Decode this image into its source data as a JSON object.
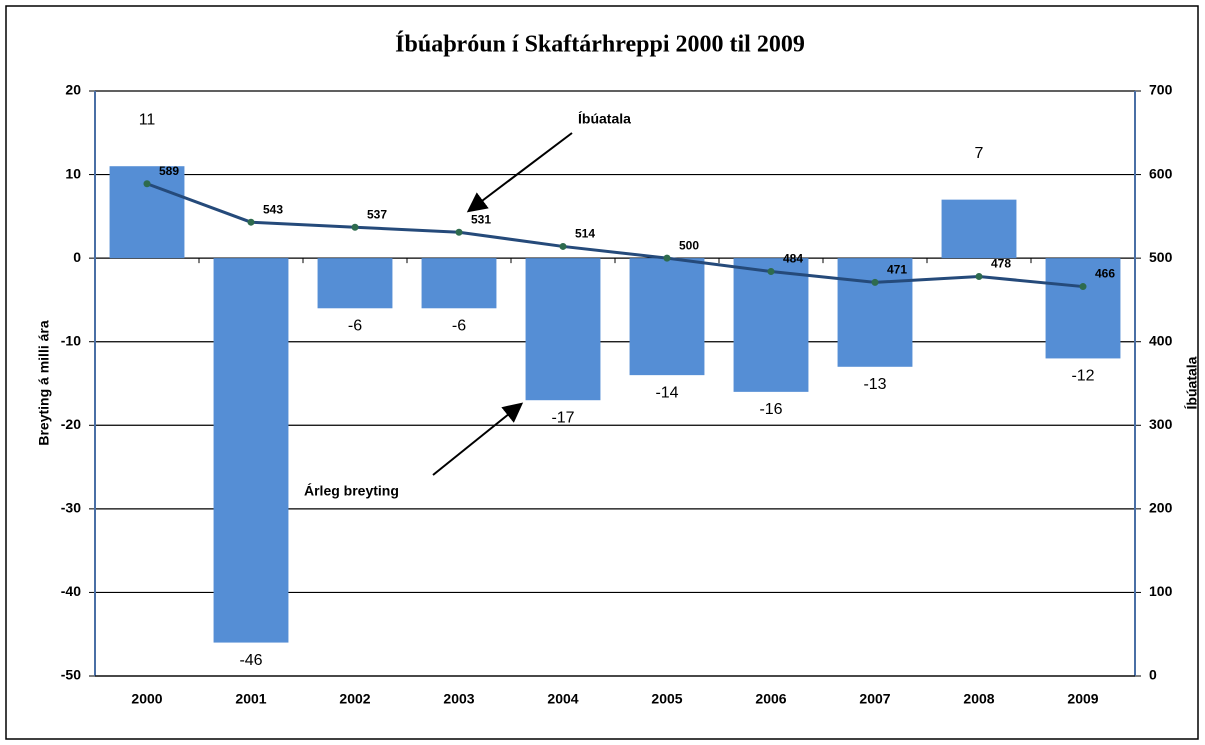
{
  "chart_data": {
    "type": "bar",
    "title": "Íbúaþróun í Skaftárhreppi 2000 til 2009",
    "ylabel": "Breyting á milli ára",
    "y2label": "Íbúatala",
    "categories": [
      "2000",
      "2001",
      "2002",
      "2003",
      "2004",
      "2005",
      "2006",
      "2007",
      "2008",
      "2009"
    ],
    "series": [
      {
        "name": "Árleg breyting",
        "color": "#558ed5",
        "values": [
          11,
          -46,
          -6,
          -6,
          -17,
          -14,
          -16,
          -13,
          7,
          -12
        ]
      },
      {
        "name": "Íbúatala",
        "color": "#254a7a",
        "axis": "y2",
        "values": [
          589,
          543,
          537,
          531,
          514,
          500,
          484,
          471,
          478,
          466
        ]
      }
    ],
    "ylim": [
      -50,
      20
    ],
    "yticks": [
      -50,
      -40,
      -30,
      -20,
      -10,
      0,
      10,
      20
    ],
    "y2lim": [
      0,
      700
    ],
    "y2ticks": [
      0,
      100,
      200,
      300,
      400,
      500,
      600,
      700
    ],
    "grid": true
  }
}
